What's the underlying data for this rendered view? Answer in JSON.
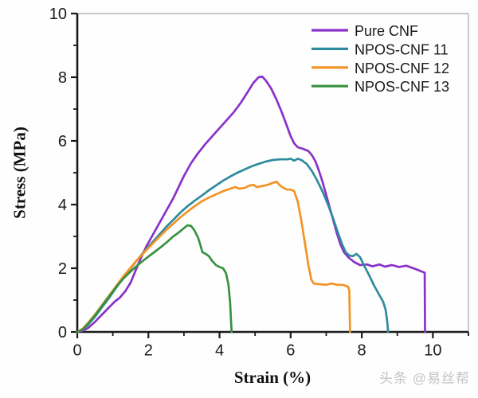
{
  "watermark": {
    "text": "头条 @易丝帮"
  },
  "legend": {
    "entries": [
      "Pure CNF",
      "NPOS-CNF 11",
      "NPOS-CNF 12",
      "NPOS-CNF 13"
    ]
  },
  "colors": {
    "axis": "#1a1a1a",
    "frame": "#b4b4b4",
    "tick_label": "#1a1a1a",
    "pure_cnf": "#8A31C9",
    "npos_cnf_11": "#2E8B9E",
    "npos_cnf_12": "#F39324",
    "npos_cnf_13": "#38913F"
  },
  "chart_data": {
    "type": "line",
    "title": "",
    "xlabel": "Strain (%)",
    "ylabel": "Stress (MPa)",
    "xlim": [
      0,
      11
    ],
    "ylim": [
      0,
      10
    ],
    "x_major_ticks": [
      0,
      2,
      4,
      6,
      8,
      10
    ],
    "x_minor_ticks": [
      1,
      3,
      5,
      7,
      9,
      11
    ],
    "y_major_ticks": [
      0,
      2,
      4,
      6,
      8,
      10
    ],
    "y_minor_ticks": [
      1,
      3,
      5,
      7,
      9
    ],
    "grid": false,
    "legend_position": "top-right",
    "series": [
      {
        "name": "Pure CNF",
        "color": "#8A31C9",
        "peak_stress_MPa": 8.0,
        "strain_at_break_pct": 9.8,
        "points": [
          [
            0,
            0
          ],
          [
            0.15,
            0.04
          ],
          [
            0.3,
            0.12
          ],
          [
            0.5,
            0.32
          ],
          [
            0.7,
            0.55
          ],
          [
            0.9,
            0.78
          ],
          [
            1.05,
            0.95
          ],
          [
            1.2,
            1.08
          ],
          [
            1.35,
            1.28
          ],
          [
            1.5,
            1.55
          ],
          [
            1.65,
            1.95
          ],
          [
            1.8,
            2.35
          ],
          [
            1.95,
            2.7
          ],
          [
            2.1,
            3.0
          ],
          [
            2.25,
            3.3
          ],
          [
            2.4,
            3.6
          ],
          [
            2.55,
            3.9
          ],
          [
            2.7,
            4.2
          ],
          [
            2.85,
            4.55
          ],
          [
            3.0,
            4.9
          ],
          [
            3.2,
            5.3
          ],
          [
            3.4,
            5.62
          ],
          [
            3.6,
            5.9
          ],
          [
            3.8,
            6.15
          ],
          [
            4.0,
            6.4
          ],
          [
            4.2,
            6.65
          ],
          [
            4.4,
            6.9
          ],
          [
            4.6,
            7.2
          ],
          [
            4.8,
            7.55
          ],
          [
            4.95,
            7.82
          ],
          [
            5.1,
            8.0
          ],
          [
            5.2,
            8.02
          ],
          [
            5.3,
            7.9
          ],
          [
            5.45,
            7.65
          ],
          [
            5.6,
            7.3
          ],
          [
            5.75,
            6.9
          ],
          [
            5.9,
            6.45
          ],
          [
            6.0,
            6.15
          ],
          [
            6.1,
            5.92
          ],
          [
            6.2,
            5.8
          ],
          [
            6.35,
            5.75
          ],
          [
            6.5,
            5.68
          ],
          [
            6.6,
            5.55
          ],
          [
            6.7,
            5.35
          ],
          [
            6.8,
            5.05
          ],
          [
            6.9,
            4.7
          ],
          [
            7.0,
            4.3
          ],
          [
            7.1,
            3.9
          ],
          [
            7.2,
            3.5
          ],
          [
            7.3,
            3.1
          ],
          [
            7.4,
            2.75
          ],
          [
            7.5,
            2.5
          ],
          [
            7.62,
            2.35
          ],
          [
            7.78,
            2.2
          ],
          [
            7.95,
            2.1
          ],
          [
            8.15,
            2.12
          ],
          [
            8.3,
            2.06
          ],
          [
            8.5,
            2.12
          ],
          [
            8.65,
            2.05
          ],
          [
            8.85,
            2.1
          ],
          [
            9.05,
            2.04
          ],
          [
            9.25,
            2.08
          ],
          [
            9.4,
            2.02
          ],
          [
            9.55,
            1.96
          ],
          [
            9.68,
            1.9
          ],
          [
            9.77,
            1.86
          ],
          [
            9.78,
            0
          ]
        ]
      },
      {
        "name": "NPOS-CNF 11",
        "color": "#2E8B9E",
        "peak_stress_MPa": 5.4,
        "strain_at_break_pct": 8.7,
        "points": [
          [
            0,
            0
          ],
          [
            0.15,
            0.08
          ],
          [
            0.3,
            0.22
          ],
          [
            0.5,
            0.48
          ],
          [
            0.7,
            0.78
          ],
          [
            0.9,
            1.08
          ],
          [
            1.1,
            1.4
          ],
          [
            1.3,
            1.7
          ],
          [
            1.5,
            2.0
          ],
          [
            1.7,
            2.28
          ],
          [
            1.9,
            2.55
          ],
          [
            2.1,
            2.8
          ],
          [
            2.3,
            3.05
          ],
          [
            2.5,
            3.3
          ],
          [
            2.7,
            3.52
          ],
          [
            2.9,
            3.75
          ],
          [
            3.1,
            3.95
          ],
          [
            3.3,
            4.12
          ],
          [
            3.5,
            4.28
          ],
          [
            3.7,
            4.45
          ],
          [
            3.9,
            4.6
          ],
          [
            4.1,
            4.75
          ],
          [
            4.3,
            4.88
          ],
          [
            4.5,
            5.0
          ],
          [
            4.7,
            5.1
          ],
          [
            4.9,
            5.2
          ],
          [
            5.1,
            5.28
          ],
          [
            5.3,
            5.35
          ],
          [
            5.5,
            5.4
          ],
          [
            5.7,
            5.42
          ],
          [
            5.9,
            5.42
          ],
          [
            6.0,
            5.44
          ],
          [
            6.1,
            5.38
          ],
          [
            6.2,
            5.44
          ],
          [
            6.3,
            5.4
          ],
          [
            6.45,
            5.28
          ],
          [
            6.6,
            5.05
          ],
          [
            6.75,
            4.75
          ],
          [
            6.9,
            4.4
          ],
          [
            7.05,
            4.0
          ],
          [
            7.2,
            3.55
          ],
          [
            7.35,
            3.05
          ],
          [
            7.45,
            2.75
          ],
          [
            7.55,
            2.5
          ],
          [
            7.65,
            2.4
          ],
          [
            7.75,
            2.38
          ],
          [
            7.85,
            2.45
          ],
          [
            7.95,
            2.35
          ],
          [
            8.05,
            2.12
          ],
          [
            8.2,
            1.8
          ],
          [
            8.35,
            1.45
          ],
          [
            8.5,
            1.15
          ],
          [
            8.6,
            0.95
          ],
          [
            8.67,
            0.7
          ],
          [
            8.72,
            0.3
          ],
          [
            8.74,
            0
          ]
        ]
      },
      {
        "name": "NPOS-CNF 12",
        "color": "#F39324",
        "peak_stress_MPa": 4.7,
        "strain_at_break_pct": 7.65,
        "points": [
          [
            0,
            0
          ],
          [
            0.15,
            0.1
          ],
          [
            0.3,
            0.28
          ],
          [
            0.5,
            0.55
          ],
          [
            0.7,
            0.85
          ],
          [
            0.9,
            1.15
          ],
          [
            1.1,
            1.45
          ],
          [
            1.3,
            1.75
          ],
          [
            1.5,
            2.02
          ],
          [
            1.7,
            2.28
          ],
          [
            1.9,
            2.52
          ],
          [
            2.1,
            2.75
          ],
          [
            2.3,
            2.98
          ],
          [
            2.5,
            3.2
          ],
          [
            2.7,
            3.4
          ],
          [
            2.9,
            3.6
          ],
          [
            3.1,
            3.78
          ],
          [
            3.3,
            3.95
          ],
          [
            3.5,
            4.1
          ],
          [
            3.7,
            4.22
          ],
          [
            3.9,
            4.32
          ],
          [
            4.1,
            4.42
          ],
          [
            4.3,
            4.5
          ],
          [
            4.45,
            4.55
          ],
          [
            4.55,
            4.5
          ],
          [
            4.7,
            4.52
          ],
          [
            4.85,
            4.6
          ],
          [
            4.95,
            4.62
          ],
          [
            5.05,
            4.55
          ],
          [
            5.2,
            4.58
          ],
          [
            5.35,
            4.62
          ],
          [
            5.5,
            4.68
          ],
          [
            5.6,
            4.72
          ],
          [
            5.7,
            4.6
          ],
          [
            5.8,
            4.52
          ],
          [
            5.9,
            4.47
          ],
          [
            6.0,
            4.47
          ],
          [
            6.1,
            4.42
          ],
          [
            6.2,
            4.1
          ],
          [
            6.3,
            3.5
          ],
          [
            6.4,
            2.8
          ],
          [
            6.5,
            2.1
          ],
          [
            6.58,
            1.65
          ],
          [
            6.65,
            1.52
          ],
          [
            6.8,
            1.5
          ],
          [
            7.0,
            1.48
          ],
          [
            7.15,
            1.52
          ],
          [
            7.3,
            1.48
          ],
          [
            7.45,
            1.48
          ],
          [
            7.55,
            1.45
          ],
          [
            7.62,
            1.42
          ],
          [
            7.65,
            1.3
          ],
          [
            7.67,
            0
          ]
        ]
      },
      {
        "name": "NPOS-CNF 13",
        "color": "#38913F",
        "peak_stress_MPa": 3.35,
        "strain_at_break_pct": 4.3,
        "points": [
          [
            0,
            0
          ],
          [
            0.15,
            0.08
          ],
          [
            0.3,
            0.25
          ],
          [
            0.5,
            0.52
          ],
          [
            0.7,
            0.82
          ],
          [
            0.9,
            1.12
          ],
          [
            1.1,
            1.42
          ],
          [
            1.3,
            1.68
          ],
          [
            1.5,
            1.9
          ],
          [
            1.7,
            2.1
          ],
          [
            1.9,
            2.28
          ],
          [
            2.1,
            2.45
          ],
          [
            2.3,
            2.62
          ],
          [
            2.5,
            2.8
          ],
          [
            2.7,
            3.0
          ],
          [
            2.85,
            3.12
          ],
          [
            3.0,
            3.26
          ],
          [
            3.1,
            3.35
          ],
          [
            3.2,
            3.33
          ],
          [
            3.3,
            3.18
          ],
          [
            3.4,
            2.95
          ],
          [
            3.47,
            2.7
          ],
          [
            3.52,
            2.5
          ],
          [
            3.6,
            2.46
          ],
          [
            3.7,
            2.38
          ],
          [
            3.8,
            2.22
          ],
          [
            3.9,
            2.1
          ],
          [
            4.0,
            2.04
          ],
          [
            4.1,
            2.0
          ],
          [
            4.18,
            1.85
          ],
          [
            4.25,
            1.5
          ],
          [
            4.3,
            0.9
          ],
          [
            4.34,
            0
          ]
        ]
      }
    ]
  }
}
